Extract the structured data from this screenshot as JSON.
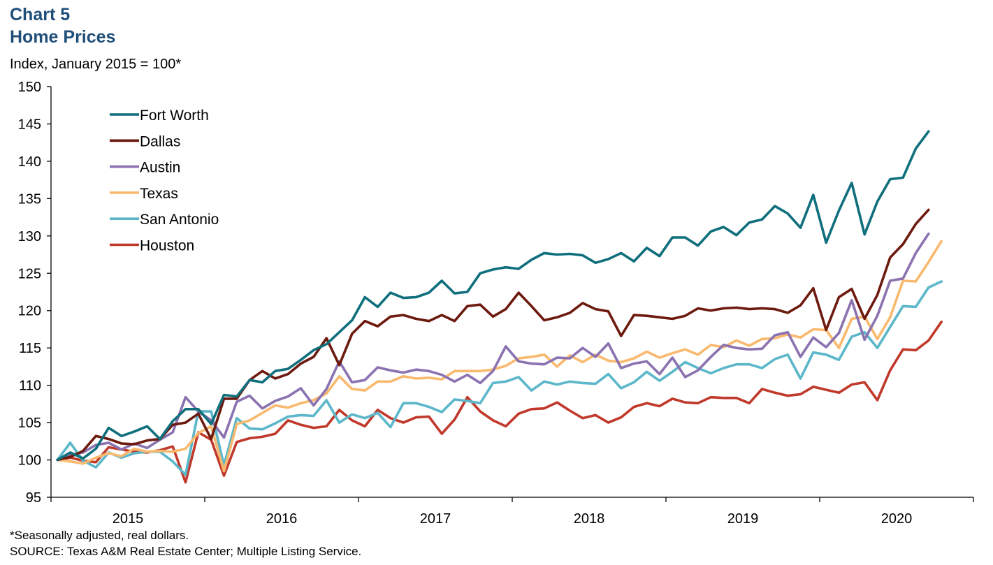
{
  "header": {
    "title_line1": "Chart 5",
    "title_line2": "Home Prices",
    "units": "Index, January 2015 = 100*"
  },
  "footer": {
    "note": "*Seasonally adjusted, real dollars.",
    "source": "SOURCE: Texas A&M Real Estate Center; Multiple Listing Service."
  },
  "chart_data": {
    "type": "line",
    "x_start": "2015-01",
    "x_frequency": "monthly",
    "xlabel": "",
    "ylabel": "Index, January 2015 = 100*",
    "ylim": [
      95,
      150
    ],
    "yticks": [
      95,
      100,
      105,
      110,
      115,
      120,
      125,
      130,
      135,
      140,
      145,
      150
    ],
    "xtick_labels": [
      "2015",
      "2016",
      "2017",
      "2018",
      "2019",
      "2020"
    ],
    "grid": false,
    "legend_position": "top-left",
    "series": [
      {
        "name": "Fort Worth",
        "color": "#0f6f7c",
        "values": [
          100,
          101,
          100.2,
          101.5,
          104.3,
          103.2,
          103.8,
          104.5,
          102.8,
          105.2,
          106.8,
          106.8,
          104.8,
          108.7,
          108.5,
          110.7,
          110.4,
          111.9,
          112.2,
          113.4,
          114.7,
          115.5,
          117.1,
          118.7,
          121.8,
          120.5,
          122.4,
          121.7,
          121.8,
          122.4,
          124,
          122.3,
          122.5,
          125,
          125.5,
          125.8,
          125.6,
          126.8,
          127.7,
          127.5,
          127.6,
          127.4,
          126.4,
          126.9,
          127.7,
          126.6,
          128.4,
          127.3,
          129.8,
          129.8,
          128.7,
          130.6,
          131.2,
          130.1,
          131.8,
          132.2,
          134,
          133,
          131.1,
          135.5,
          129.1,
          133.4,
          137.1,
          130.2,
          134.6,
          137.6,
          137.8,
          141.7,
          144
        ]
      },
      {
        "name": "Dallas",
        "color": "#6d1a0f",
        "values": [
          100,
          100.4,
          101.2,
          103.2,
          102.8,
          102.2,
          102.1,
          102.6,
          102.8,
          104.7,
          105,
          106.2,
          102.8,
          108.2,
          108.2,
          110.7,
          111.9,
          110.9,
          111.5,
          112.9,
          113.8,
          116.3,
          112.7,
          116.9,
          118.6,
          117.9,
          119.2,
          119.4,
          118.9,
          118.6,
          119.4,
          118.6,
          120.6,
          120.8,
          119.2,
          120.2,
          122.4,
          120.6,
          118.7,
          119.1,
          119.7,
          121,
          120.2,
          119.9,
          116.6,
          119.4,
          119.3,
          119.1,
          118.9,
          119.3,
          120.3,
          120,
          120.3,
          120.4,
          120.2,
          120.3,
          120.2,
          119.7,
          120.7,
          123,
          117.4,
          121.8,
          122.9,
          118.9,
          122.1,
          127.1,
          128.9,
          131.6,
          133.5
        ]
      },
      {
        "name": "Austin",
        "color": "#8b72b0",
        "values": [
          100,
          100.7,
          101,
          102,
          102.3,
          101.4,
          102.2,
          101.6,
          102.7,
          103.7,
          108.4,
          106.5,
          105.3,
          103,
          107.8,
          108.6,
          106.9,
          107.9,
          108.5,
          109.6,
          107.3,
          109.5,
          113.2,
          110.4,
          110.7,
          112.4,
          112,
          111.7,
          112.1,
          111.9,
          111.4,
          110.5,
          111.4,
          110.3,
          111.9,
          115.2,
          113.2,
          112.9,
          112.8,
          113.7,
          113.6,
          115,
          113.8,
          115.6,
          112.3,
          112.9,
          113.2,
          111.5,
          113.7,
          111.1,
          112,
          113.8,
          115.4,
          115,
          114.8,
          114.9,
          116.7,
          117.1,
          113.8,
          116.4,
          115.1,
          117,
          121.4,
          116.1,
          119.3,
          124,
          124.3,
          127.7,
          130.3
        ]
      },
      {
        "name": "Texas",
        "color": "#f9b96e",
        "values": [
          100,
          99.8,
          99.5,
          100.3,
          100.9,
          100.5,
          101.5,
          101.1,
          101.2,
          101.1,
          101.5,
          103.6,
          104.5,
          98.5,
          104.8,
          105.3,
          106.3,
          107.3,
          107,
          107.6,
          108,
          108.9,
          111.2,
          109.5,
          109.3,
          110.5,
          110.5,
          111.2,
          110.9,
          111,
          110.8,
          111.9,
          111.9,
          111.9,
          112.1,
          112.6,
          113.6,
          113.8,
          114.1,
          112.5,
          114,
          113.1,
          114.1,
          113.3,
          113.1,
          113.6,
          114.5,
          113.7,
          114.3,
          114.8,
          114.1,
          115.4,
          115.1,
          116,
          115.3,
          116.2,
          116.3,
          116.8,
          116.4,
          117.5,
          117.4,
          115,
          118.9,
          119.2,
          116.2,
          119.1,
          124,
          123.9,
          126.5,
          129.3
        ]
      },
      {
        "name": "San Antonio",
        "color": "#5bb7c9",
        "values": [
          100,
          102.3,
          99.9,
          99,
          101,
          100.3,
          100.9,
          101.1,
          101.1,
          99.8,
          98,
          106.5,
          106.5,
          99.3,
          105.6,
          104.2,
          104.1,
          104.9,
          105.8,
          106,
          105.9,
          108,
          105,
          106.1,
          105.6,
          106.3,
          104.4,
          107.6,
          107.6,
          107.1,
          106.4,
          108.1,
          107.9,
          107.6,
          110.3,
          110.5,
          111.1,
          109.3,
          110.5,
          110.1,
          110.5,
          110.3,
          110.2,
          111.5,
          109.6,
          110.4,
          111.8,
          110.6,
          111.8,
          113.1,
          112.3,
          111.6,
          112.3,
          112.8,
          112.8,
          112.3,
          113.5,
          114.1,
          110.9,
          114.4,
          114.1,
          113.4,
          116.5,
          117.1,
          115,
          117.8,
          120.6,
          120.5,
          123.1,
          123.9
        ]
      },
      {
        "name": "Houston",
        "color": "#c0392b",
        "values": [
          100,
          100.3,
          99.9,
          99.7,
          101.7,
          101.4,
          101.1,
          101,
          101.3,
          101.8,
          97,
          103.7,
          102.7,
          97.9,
          102.4,
          102.9,
          103.1,
          103.5,
          105.3,
          104.7,
          104.3,
          104.5,
          106.7,
          105.3,
          104.5,
          106.7,
          105.6,
          105,
          105.7,
          105.8,
          103.5,
          105.4,
          108.4,
          106.5,
          105.3,
          104.5,
          106.2,
          106.8,
          106.9,
          107.7,
          106.6,
          105.6,
          106,
          105,
          105.7,
          107.1,
          107.6,
          107.2,
          108.2,
          107.7,
          107.6,
          108.4,
          108.3,
          108.3,
          107.6,
          109.5,
          109,
          108.6,
          108.8,
          109.8,
          109.4,
          109,
          110.1,
          110.4,
          108,
          112,
          114.8,
          114.7,
          116,
          118.5
        ]
      }
    ]
  }
}
